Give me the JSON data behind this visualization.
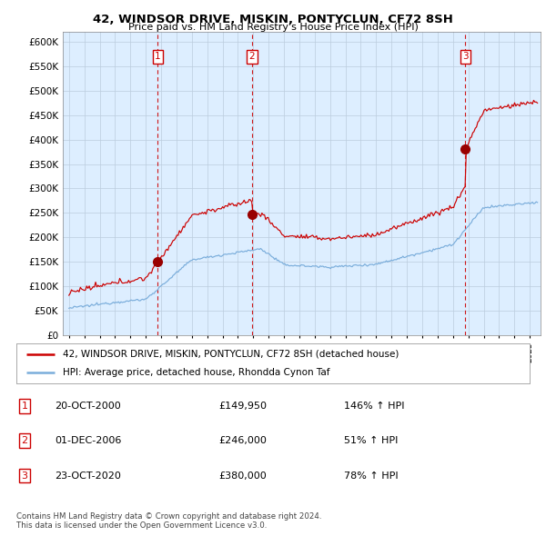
{
  "title": "42, WINDSOR DRIVE, MISKIN, PONTYCLUN, CF72 8SH",
  "subtitle": "Price paid vs. HM Land Registry's House Price Index (HPI)",
  "yticks": [
    0,
    50000,
    100000,
    150000,
    200000,
    250000,
    300000,
    350000,
    400000,
    450000,
    500000,
    550000,
    600000
  ],
  "ylim": [
    0,
    620000
  ],
  "xlim_start": 1994.6,
  "xlim_end": 2025.7,
  "sale_dates": [
    2000.79,
    2006.92,
    2020.81
  ],
  "sale_prices": [
    149950,
    246000,
    380000
  ],
  "sale_labels": [
    "1",
    "2",
    "3"
  ],
  "red_line_color": "#cc0000",
  "blue_line_color": "#7aaddb",
  "vline_color": "#cc0000",
  "plot_bg_color": "#ddeeff",
  "grid_color": "#bbccdd",
  "legend_red_label": "42, WINDSOR DRIVE, MISKIN, PONTYCLUN, CF72 8SH (detached house)",
  "legend_blue_label": "HPI: Average price, detached house, Rhondda Cynon Taf",
  "table_rows": [
    {
      "num": "1",
      "date": "20-OCT-2000",
      "price": "£149,950",
      "hpi": "146% ↑ HPI"
    },
    {
      "num": "2",
      "date": "01-DEC-2006",
      "price": "£246,000",
      "hpi": "51% ↑ HPI"
    },
    {
      "num": "3",
      "date": "23-OCT-2020",
      "price": "£380,000",
      "hpi": "78% ↑ HPI"
    }
  ],
  "footnote": "Contains HM Land Registry data © Crown copyright and database right 2024.\nThis data is licensed under the Open Government Licence v3.0.",
  "background_color": "#ffffff"
}
